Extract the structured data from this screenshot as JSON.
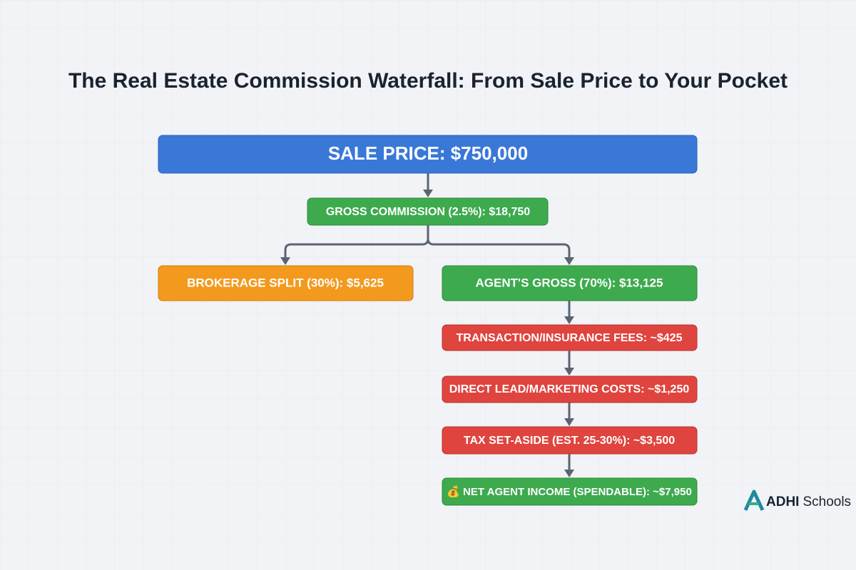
{
  "title": "The Real Estate Commission Waterfall: From Sale Price to Your Pocket",
  "nodes": [
    {
      "label": "SALE PRICE: $750,000"
    },
    {
      "label": "GROSS COMMISSION (2.5%): $18,750"
    },
    {
      "label": "BROKERAGE SPLIT (30%): $5,625"
    },
    {
      "label": "AGENT'S GROSS (70%): $13,125"
    },
    {
      "label": "TRANSACTION/INSURANCE FEES: ~$425"
    },
    {
      "label": "DIRECT LEAD/MARKETING COSTS: ~$1,250"
    },
    {
      "label": "TAX SET-ASIDE (EST. 25-30%): ~$3,500"
    },
    {
      "label": "💰 NET AGENT INCOME (SPENDABLE): ~$7,950"
    }
  ],
  "logo": {
    "brand": "ADHI",
    "suffix": "Schools"
  }
}
